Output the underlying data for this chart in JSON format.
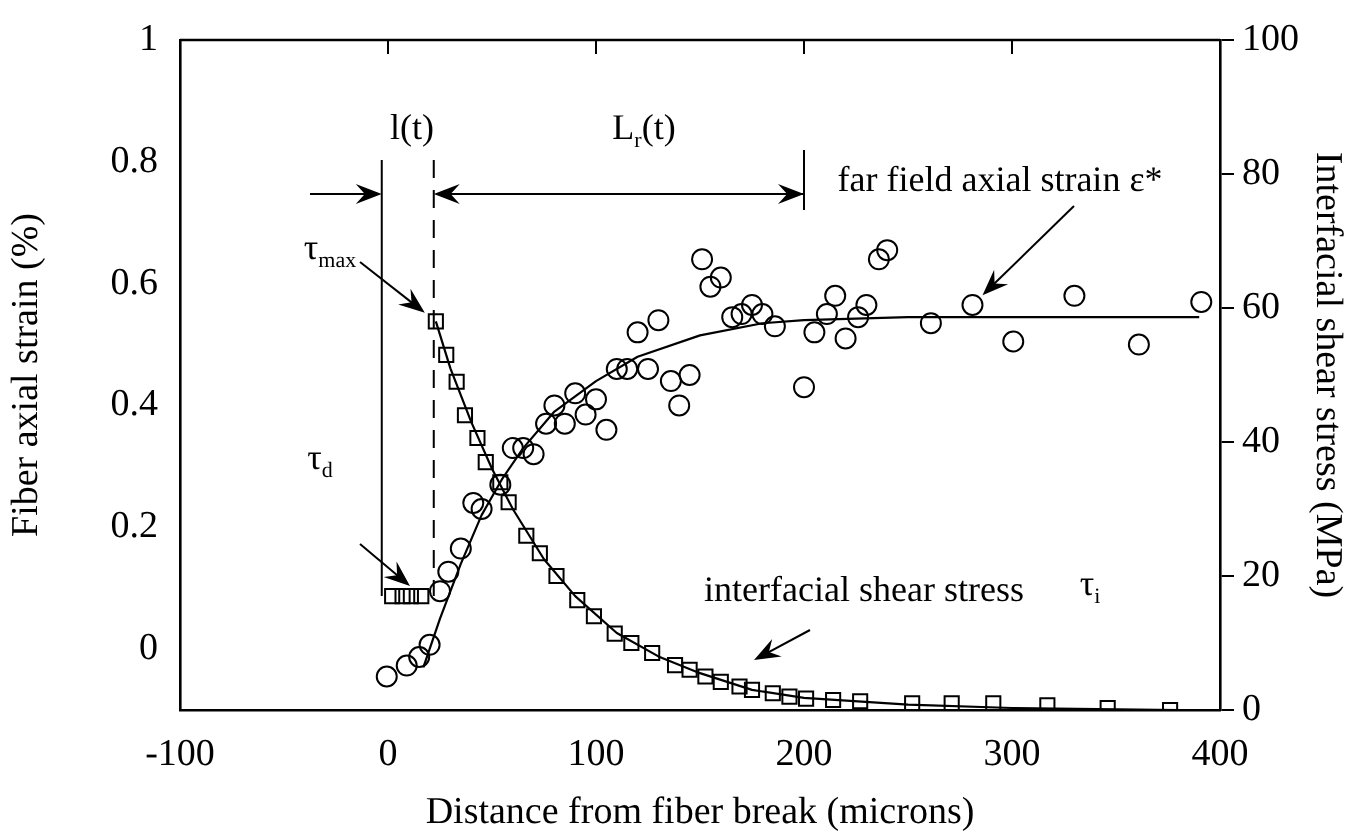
{
  "chart_data": {
    "type": "scatter",
    "xlabel": "Distance from fiber break (microns)",
    "ylabel": "Fiber axial strain (%)",
    "y2label": "Interfacial shear stress (MPa)",
    "xlim": [
      -100,
      400
    ],
    "xticks": [
      -100,
      0,
      100,
      200,
      300,
      400
    ],
    "ylim": [
      -0.1,
      1
    ],
    "yticks": [
      0,
      0.2,
      0.4,
      0.6,
      0.8,
      1
    ],
    "y2lim": [
      0,
      100
    ],
    "y2ticks": [
      0,
      20,
      40,
      60,
      80,
      100
    ],
    "grid": false,
    "legend": false,
    "series": [
      {
        "marker": "circle",
        "color": "#000000",
        "x": [
          -0.6,
          9,
          15,
          20,
          25,
          29,
          35,
          41,
          45,
          54,
          60,
          65,
          70,
          76,
          80,
          85,
          90,
          95,
          100,
          105,
          110,
          115,
          120,
          125,
          130,
          136,
          140,
          145,
          151,
          155,
          160,
          165.5,
          170,
          175,
          180,
          186,
          200,
          205,
          211,
          215,
          220,
          226,
          230,
          236,
          240,
          261,
          281,
          300.6,
          330,
          361,
          391
        ],
        "values": [
          -0.045,
          -0.027,
          -0.013,
          0.007,
          0.095,
          0.127,
          0.165,
          0.24,
          0.23,
          0.27,
          0.33,
          0.33,
          0.32,
          0.37,
          0.4,
          0.37,
          0.42,
          0.385,
          0.41,
          0.36,
          0.46,
          0.46,
          0.52,
          0.46,
          0.54,
          0.44,
          0.4,
          0.45,
          0.64,
          0.595,
          0.61,
          0.545,
          0.55,
          0.565,
          0.55,
          0.53,
          0.43,
          0.52,
          0.55,
          0.58,
          0.51,
          0.545,
          0.565,
          0.64,
          0.655,
          0.535,
          0.565,
          0.505,
          0.58,
          0.5,
          0.57
        ]
      },
      {
        "type": "line",
        "marker": "none",
        "color": "#000000",
        "x": [
          17,
          25,
          35,
          45,
          55,
          65,
          80,
          100,
          120,
          150,
          180,
          200,
          250,
          390
        ],
        "values": [
          -0.03,
          0.05,
          0.14,
          0.22,
          0.28,
          0.33,
          0.39,
          0.44,
          0.48,
          0.515,
          0.535,
          0.54,
          0.545,
          0.545
        ]
      },
      {
        "marker": "square",
        "axis": "y2",
        "color": "#000000",
        "x": [
          2,
          7,
          11,
          16,
          23,
          28,
          33,
          37,
          43,
          47,
          54,
          58,
          66.5,
          73,
          81,
          91,
          99,
          109,
          117,
          127,
          138,
          145,
          152.6,
          160,
          169,
          175,
          185,
          193,
          201,
          214,
          227,
          252,
          271,
          291,
          317,
          346,
          376
        ],
        "values": [
          17,
          17,
          17,
          17,
          58,
          53,
          49,
          44,
          40.6,
          37,
          34,
          31,
          26,
          23.4,
          20,
          16.4,
          14,
          11.4,
          10,
          8.5,
          6.7,
          6,
          5,
          4.2,
          3.5,
          3,
          2.5,
          2,
          1.7,
          1.5,
          1.3,
          1,
          1,
          1,
          0.7,
          0.3,
          0
        ]
      },
      {
        "type": "line",
        "marker": "none",
        "axis": "y2",
        "color": "#000000",
        "x": [
          23,
          30,
          40,
          50,
          60,
          75,
          90,
          110,
          130,
          150,
          175,
          200,
          250,
          300,
          380
        ],
        "values": [
          58,
          51,
          43,
          36,
          30,
          22.5,
          17,
          11.5,
          8,
          5.5,
          3,
          1.8,
          0.8,
          0.3,
          0
        ]
      }
    ],
    "ref_lines": [
      {
        "axis": "x",
        "value": -3,
        "line_style": "solid"
      },
      {
        "axis": "x",
        "value": 22,
        "line_style": "dashed"
      },
      {
        "axis": "x",
        "value": 200,
        "line_style": "solid"
      }
    ],
    "annotations": [
      "l(t)",
      "L$_{r}$(t)",
      {
        "text": "far field axial strain ε*",
        "x": 281,
        "y": 0.565
      },
      {
        "text": "τ$_{max}$",
        "x": 23,
        "y": 0.538
      },
      "τ$_{d}$",
      "interfacial shear stress",
      "τ$_{i}$"
    ]
  }
}
